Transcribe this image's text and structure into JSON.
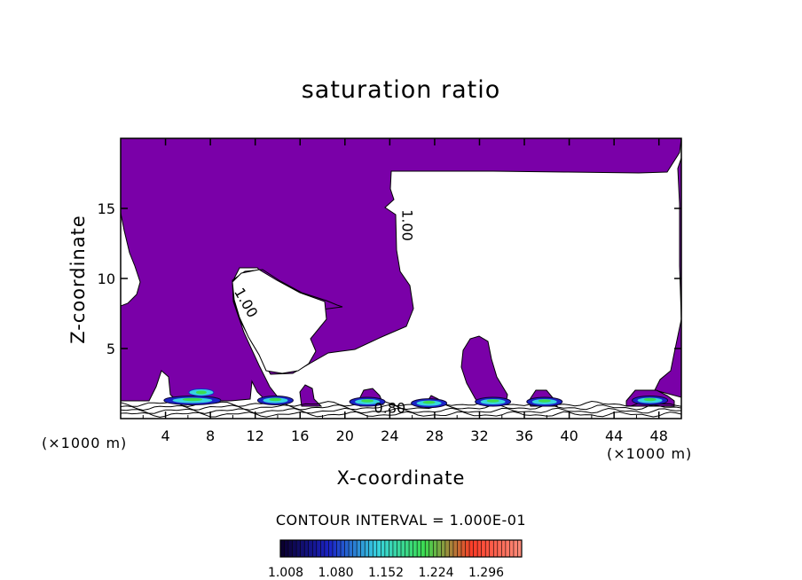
{
  "chart_data": {
    "type": "heatmap",
    "title": "saturation ratio",
    "xlabel": "X-coordinate",
    "ylabel": "Z-coordinate",
    "x_unit": "(×1000 m)",
    "xlim": [
      0,
      50
    ],
    "ylim": [
      0,
      20
    ],
    "x_ticks": [
      4,
      8,
      12,
      16,
      20,
      24,
      28,
      32,
      36,
      40,
      44,
      48
    ],
    "y_ticks": [
      5,
      10,
      15
    ],
    "contour_interval": "CONTOUR INTERVAL = 1.000E-01",
    "contour_labels": [
      {
        "text": "1.00",
        "x": 10.8,
        "y": 8.1
      },
      {
        "text": "1.00",
        "x": 25.1,
        "y": 13.8
      },
      {
        "text": "0.80",
        "x": 24.0,
        "y": 0.4
      }
    ],
    "colorbar": {
      "tick_labels": [
        "1.008",
        "1.080",
        "1.152",
        "1.224",
        "1.296"
      ],
      "colors": [
        "#0b0030",
        "#1b24c8",
        "#38d4e0",
        "#3cdc50",
        "#ff3c28",
        "#ff8a78"
      ]
    },
    "fill_color": "#7a00a8",
    "moist_cores": [
      {
        "x": 6.4,
        "y": 1.3
      },
      {
        "x": 13.8,
        "y": 1.3
      },
      {
        "x": 22.0,
        "y": 1.2
      },
      {
        "x": 27.5,
        "y": 1.1
      },
      {
        "x": 33.2,
        "y": 1.2
      },
      {
        "x": 37.8,
        "y": 1.2
      },
      {
        "x": 47.2,
        "y": 1.3
      }
    ]
  }
}
